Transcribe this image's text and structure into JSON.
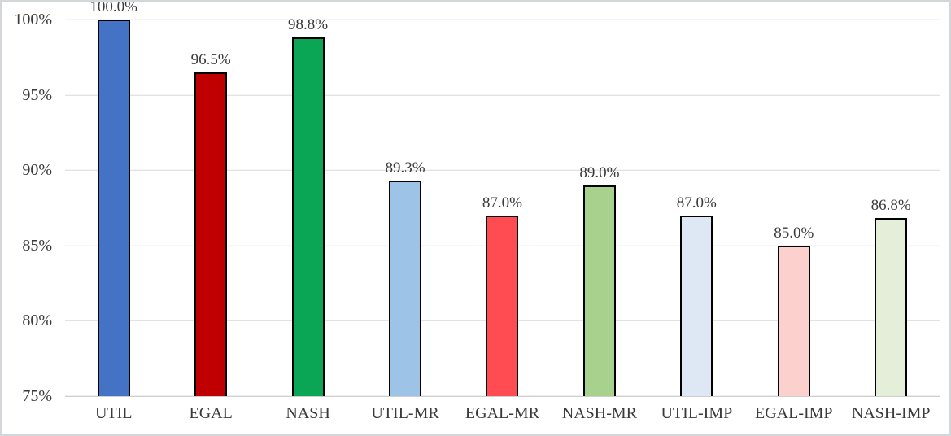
{
  "chart_data": {
    "type": "bar",
    "title": "",
    "xlabel": "",
    "ylabel": "",
    "categories": [
      "UTIL",
      "EGAL",
      "NASH",
      "UTIL-MR",
      "EGAL-MR",
      "NASH-MR",
      "UTIL-IMP",
      "EGAL-IMP",
      "NASH-IMP"
    ],
    "values": [
      100.0,
      96.5,
      98.8,
      89.3,
      87.0,
      89.0,
      87.0,
      85.0,
      86.8
    ],
    "value_labels": [
      "100.0%",
      "96.5%",
      "98.8%",
      "89.3%",
      "87.0%",
      "89.0%",
      "87.0%",
      "85.0%",
      "86.8%"
    ],
    "bar_colors": [
      "#4472C4",
      "#C00000",
      "#0AA655",
      "#9DC3E6",
      "#FF4C52",
      "#A9D18E",
      "#DEE8F4",
      "#FCD1CD",
      "#E4EED8"
    ],
    "ylim": [
      75,
      100
    ],
    "yticks": [
      {
        "value": 75,
        "label": "75%"
      },
      {
        "value": 80,
        "label": "80%"
      },
      {
        "value": 85,
        "label": "85%"
      },
      {
        "value": 90,
        "label": "90%"
      },
      {
        "value": 95,
        "label": "95%"
      },
      {
        "value": 100,
        "label": "100%"
      }
    ],
    "grid": true,
    "legend": false
  },
  "style": {
    "background": "#FFFFFF",
    "frame_border_color": "#D3D7DA",
    "gridline_color": "#D9D9D9",
    "baseline_color": "#BFBFBF",
    "bar_border_color": "#000000",
    "text_color": "#3A3A3A"
  }
}
